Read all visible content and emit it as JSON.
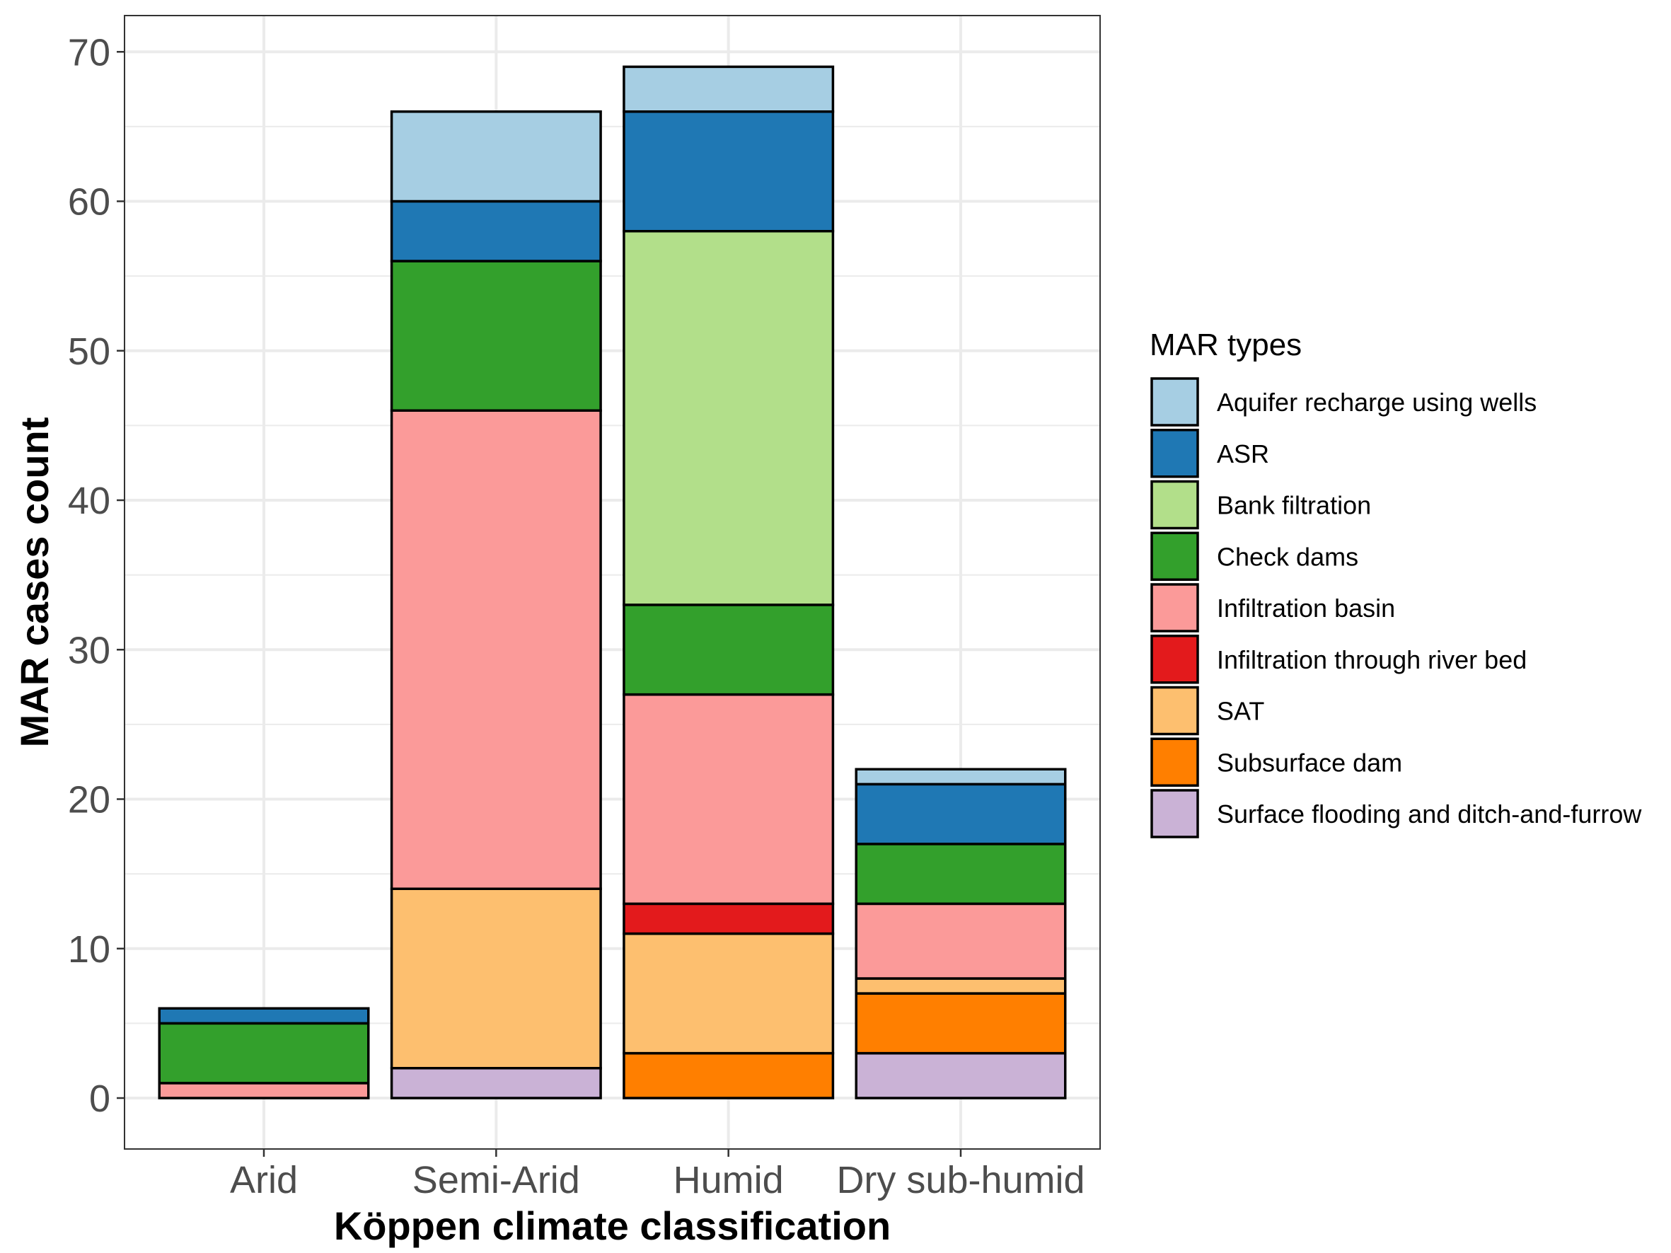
{
  "chart_data": {
    "type": "bar",
    "stacked": true,
    "xlabel": "Köppen climate classification",
    "ylabel": "MAR cases count",
    "ylim": [
      0,
      73
    ],
    "yticks": [
      0,
      10,
      20,
      30,
      40,
      50,
      60,
      70
    ],
    "grid": true,
    "legend_position": "right",
    "categories": [
      "Arid",
      "Semi-Arid",
      "Humid",
      "Dry sub-humid"
    ],
    "legend": {
      "title": "MAR types"
    },
    "series": [
      {
        "name": "Aquifer recharge using wells",
        "color": "#a6cee3",
        "values": [
          0,
          6,
          3,
          1
        ]
      },
      {
        "name": "ASR",
        "color": "#1f78b4",
        "values": [
          1,
          4,
          8,
          4
        ]
      },
      {
        "name": "Bank filtration",
        "color": "#b2df8a",
        "values": [
          0,
          0,
          25,
          0
        ]
      },
      {
        "name": "Check dams",
        "color": "#33a02c",
        "values": [
          4,
          10,
          6,
          4
        ]
      },
      {
        "name": "Infiltration basin",
        "color": "#fb9a99",
        "values": [
          1,
          32,
          14,
          5
        ]
      },
      {
        "name": "Infiltration through river bed",
        "color": "#e31a1c",
        "values": [
          0,
          0,
          2,
          0
        ]
      },
      {
        "name": "SAT",
        "color": "#fdbf6f",
        "values": [
          0,
          12,
          8,
          1
        ]
      },
      {
        "name": "Subsurface dam",
        "color": "#ff7f00",
        "values": [
          0,
          0,
          3,
          4
        ]
      },
      {
        "name": "Surface flooding and ditch-and-furrow",
        "color": "#cab2d6",
        "values": [
          0,
          2,
          0,
          3
        ]
      }
    ]
  }
}
